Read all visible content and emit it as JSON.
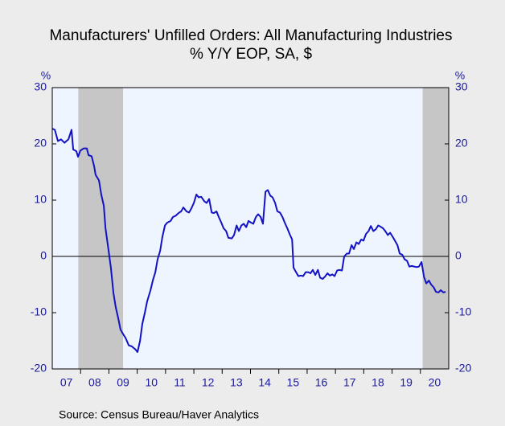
{
  "chart_data": {
    "type": "line",
    "title": "Manufacturers' Unfilled Orders: All Manufacturing Industries",
    "subtitle": "% Y/Y   EOP, SA, $",
    "y_unit_left": "%",
    "y_unit_right": "%",
    "source": "Source:  Census Bureau/Haver Analytics",
    "xlim": [
      2007,
      2021
    ],
    "xticks": [
      {
        "value": 2007.5,
        "label": "07"
      },
      {
        "value": 2008.5,
        "label": "08"
      },
      {
        "value": 2009.5,
        "label": "09"
      },
      {
        "value": 2010.5,
        "label": "10"
      },
      {
        "value": 2011.5,
        "label": "11"
      },
      {
        "value": 2012.5,
        "label": "12"
      },
      {
        "value": 2013.5,
        "label": "13"
      },
      {
        "value": 2014.5,
        "label": "14"
      },
      {
        "value": 2015.5,
        "label": "15"
      },
      {
        "value": 2016.5,
        "label": "16"
      },
      {
        "value": 2017.5,
        "label": "17"
      },
      {
        "value": 2018.5,
        "label": "18"
      },
      {
        "value": 2019.5,
        "label": "19"
      },
      {
        "value": 2020.5,
        "label": "20"
      }
    ],
    "ylim": [
      -20,
      30
    ],
    "yticks": [
      -20,
      -10,
      0,
      10,
      20,
      30
    ],
    "y2lim": [
      -20,
      30
    ],
    "y2ticks": [
      -20,
      -10,
      0,
      10,
      20,
      30
    ],
    "shaded_periods": [
      [
        2007.92,
        2009.5
      ],
      [
        2020.08,
        2021
      ]
    ],
    "shade_color": "#c6c6c6",
    "plot_background": "#eef5ff",
    "x": [
      2007.0,
      2007.09,
      2007.2,
      2007.31,
      2007.43,
      2007.57,
      2007.68,
      2007.74,
      2007.85,
      2007.91,
      2007.99,
      2008.11,
      2008.22,
      2008.28,
      2008.39,
      2008.48,
      2008.53,
      2008.65,
      2008.73,
      2008.82,
      2008.88,
      2008.99,
      2009.07,
      2009.16,
      2009.24,
      2009.33,
      2009.41,
      2009.5,
      2009.59,
      2009.7,
      2009.81,
      2009.93,
      2010.01,
      2010.1,
      2010.18,
      2010.27,
      2010.35,
      2010.47,
      2010.55,
      2010.64,
      2010.72,
      2010.81,
      2010.89,
      2010.98,
      2011.06,
      2011.18,
      2011.26,
      2011.35,
      2011.46,
      2011.55,
      2011.63,
      2011.74,
      2011.83,
      2011.91,
      2012.0,
      2012.09,
      2012.17,
      2012.26,
      2012.37,
      2012.45,
      2012.54,
      2012.63,
      2012.71,
      2012.8,
      2012.88,
      2012.97,
      2013.05,
      2013.14,
      2013.22,
      2013.34,
      2013.42,
      2013.51,
      2013.59,
      2013.68,
      2013.76,
      2013.85,
      2013.93,
      2014.02,
      2014.1,
      2014.19,
      2014.27,
      2014.36,
      2014.44,
      2014.53,
      2014.61,
      2014.7,
      2014.78,
      2014.87,
      2014.95,
      2015.04,
      2015.13,
      2015.21,
      2015.3,
      2015.38,
      2015.47,
      2015.52,
      2015.61,
      2015.69,
      2015.78,
      2015.86,
      2015.95,
      2016.03,
      2016.12,
      2016.2,
      2016.29,
      2016.38,
      2016.46,
      2016.55,
      2016.63,
      2016.72,
      2016.8,
      2016.89,
      2016.97,
      2017.06,
      2017.14,
      2017.23,
      2017.31,
      2017.4,
      2017.48,
      2017.57,
      2017.65,
      2017.74,
      2017.82,
      2017.91,
      2017.99,
      2018.08,
      2018.17,
      2018.25,
      2018.34,
      2018.42,
      2018.51,
      2018.59,
      2018.68,
      2018.76,
      2018.85,
      2018.93,
      2019.02,
      2019.1,
      2019.19,
      2019.27,
      2019.36,
      2019.44,
      2019.53,
      2019.61,
      2019.7,
      2019.78,
      2019.87,
      2019.95,
      2020.04,
      2020.13,
      2020.21,
      2020.3,
      2020.38,
      2020.47,
      2020.55,
      2020.64,
      2020.72,
      2020.81,
      2020.89
    ],
    "series": [
      {
        "color": "#1212c4",
        "values": [
          22.7,
          22.5,
          20.5,
          20.8,
          20.2,
          20.8,
          22.5,
          19,
          18.7,
          17.7,
          18.8,
          19.2,
          19.2,
          18,
          17.8,
          16,
          14.5,
          13.5,
          11,
          9,
          5,
          1,
          -2,
          -6.5,
          -9,
          -11,
          -13,
          -13.8,
          -14.5,
          -15.8,
          -16,
          -16.5,
          -17,
          -15,
          -12,
          -10,
          -8,
          -6,
          -4.3,
          -2.8,
          -0.5,
          1,
          3.5,
          5.5,
          6,
          6.3,
          7,
          7.2,
          7.7,
          8,
          8.7,
          8,
          7.8,
          8.5,
          9.5,
          11,
          10.5,
          10.6,
          9.8,
          9.5,
          10.2,
          7.8,
          7.7,
          8,
          7,
          6,
          5,
          4.5,
          3.3,
          3.2,
          3.8,
          5.5,
          4.5,
          5.5,
          5.8,
          5.2,
          6.3,
          6,
          5.8,
          7,
          7.5,
          7,
          5.8,
          11.5,
          11.8,
          10.8,
          10.5,
          9.5,
          8,
          7.8,
          7,
          6,
          5,
          4,
          3,
          -2,
          -2.8,
          -3.5,
          -3.4,
          -3.5,
          -2.8,
          -2.8,
          -3,
          -2.4,
          -3.3,
          -2.4,
          -3.8,
          -4,
          -3.6,
          -3,
          -3.4,
          -3.2,
          -3.5,
          -2.5,
          -2.4,
          -2.5,
          0,
          0.5,
          0.5,
          2,
          1.3,
          2.5,
          2.2,
          3,
          2.8,
          4,
          4.5,
          5.4,
          4.5,
          4.8,
          5.5,
          5.3,
          5,
          4.5,
          3.8,
          4.2,
          3.5,
          2.8,
          2,
          0.5,
          0.3,
          -0.5,
          -0.8,
          -1.8,
          -1.7,
          -1.8,
          -1.9,
          -1.8,
          -1,
          -3.7,
          -4.8,
          -4.3,
          -5,
          -5.5,
          -6.3,
          -6.4,
          -6,
          -6.4,
          -6.3
        ]
      }
    ]
  }
}
